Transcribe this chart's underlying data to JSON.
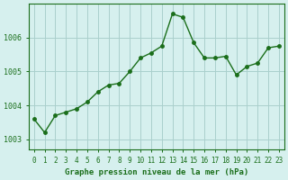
{
  "x": [
    0,
    1,
    2,
    3,
    4,
    5,
    6,
    7,
    8,
    9,
    10,
    11,
    12,
    13,
    14,
    15,
    16,
    17,
    18,
    19,
    20,
    21,
    22,
    23
  ],
  "y": [
    1003.6,
    1003.2,
    1003.7,
    1003.8,
    1003.9,
    1004.1,
    1004.4,
    1004.6,
    1004.65,
    1005.0,
    1005.4,
    1005.55,
    1005.75,
    1006.7,
    1006.6,
    1005.85,
    1005.4,
    1005.4,
    1005.45,
    1004.9,
    1005.15,
    1005.25,
    1005.7,
    1005.75
  ],
  "line_color": "#1a6e1a",
  "marker_color": "#1a6e1a",
  "bg_color": "#d6f0ee",
  "grid_color": "#aacfcc",
  "title": "Graphe pression niveau de la mer (hPa)",
  "title_color": "#1a6e1a",
  "title_bg": "#2e7d32",
  "xlabel_color": "#1a6e1a",
  "ylabel_ticks": [
    1003,
    1004,
    1005,
    1006
  ],
  "ylim": [
    1002.7,
    1007.0
  ],
  "xlim": [
    -0.5,
    23.5
  ],
  "tick_color": "#1a6e1a",
  "axis_color": "#1a6e1a",
  "bottom_label": "Graphe pression niveau de la mer (hPa)"
}
